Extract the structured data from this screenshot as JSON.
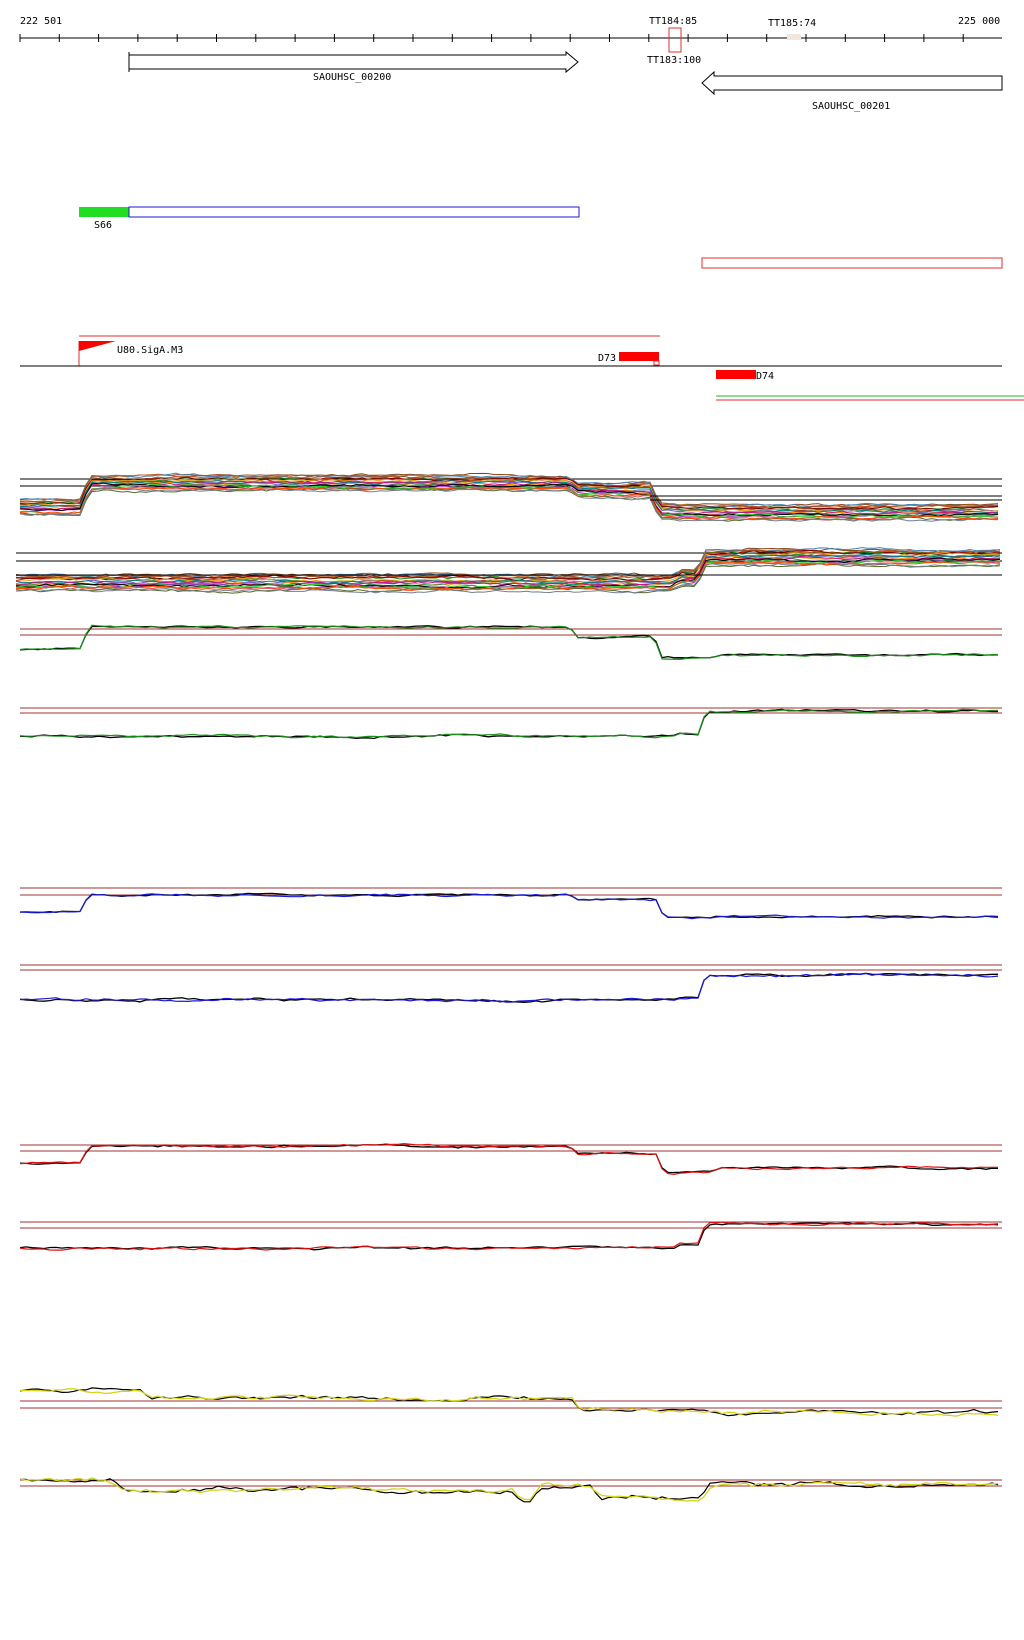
{
  "coordinate_axis": {
    "start_label": "222 501",
    "end_label": "225 000",
    "start": 222501,
    "end": 225000
  },
  "terminators": [
    {
      "name": "TT184:85",
      "position": 224188
    },
    {
      "name": "TT185:74",
      "position": 224495
    },
    {
      "name": "TT183:100",
      "position": 224188
    }
  ],
  "genes": [
    {
      "name": "SAOUHSC_00200",
      "start": 222780,
      "end": 223925,
      "strand": "+"
    },
    {
      "name": "SAOUHSC_00201",
      "start": 224290,
      "end": 225000,
      "strand": "-"
    }
  ],
  "segments": [
    {
      "name": "S66",
      "color": "#22dd22"
    }
  ],
  "promoters": [
    {
      "name": "U80.SigA.M3",
      "color": "#ff0000"
    }
  ],
  "down_features": [
    {
      "name": "D73",
      "color": "#ff0000"
    },
    {
      "name": "D74",
      "color": "#ff0000"
    }
  ],
  "colors": {
    "blue_track": "#1a1ad6",
    "red_track": "#dd1111",
    "green_track": "#1a8f1a",
    "yellow_track": "#d4d41a",
    "threshold_line": "#a03030"
  }
}
